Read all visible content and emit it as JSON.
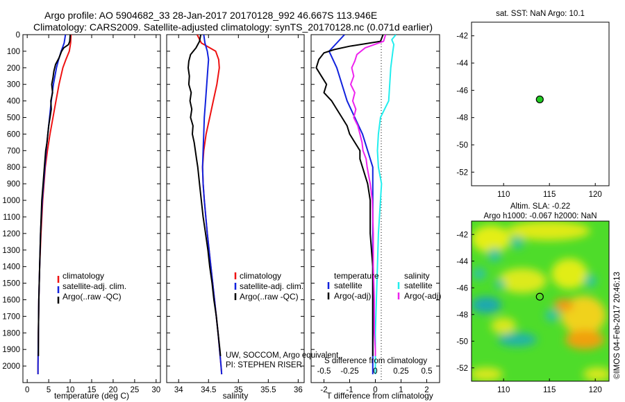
{
  "header": {
    "line1": "Argo profile: AO 5904682_33 28-Jan-2017 20170128_992 46.667S 113.946E",
    "line2": "Climatology: CARS2009. Satellite-adjusted climatology: synTS_20170128.nc (0.071d earlier)"
  },
  "annotations": {
    "float_info_1": "UW, SOCCOM, Argo equivalent",
    "float_info_2": "PI: STEPHEN RISER",
    "watermark": "©IMOS 04-Feb-2017 20:46:13"
  },
  "colors": {
    "climatology": "#ee1111",
    "satellite": "#1122dd",
    "argo": "#000000",
    "salinity_diff_argo": "#ee22ee",
    "salinity_diff_sat": "#22eeee",
    "dot": "#22cc22"
  },
  "chart_data": [
    {
      "type": "line",
      "panel": "temperature",
      "xlabel": "temperature (deg C)",
      "xlim": [
        -1,
        31
      ],
      "ylim": [
        2100,
        0
      ],
      "xticks": [
        "0",
        "5",
        "10",
        "15",
        "20",
        "25",
        "30"
      ],
      "yticks": [
        "0",
        "100",
        "200",
        "300",
        "400",
        "500",
        "600",
        "700",
        "800",
        "900",
        "1000",
        "1100",
        "1200",
        "1300",
        "1400",
        "1500",
        "1600",
        "1700",
        "1800",
        "1900",
        "2000"
      ],
      "legend": [
        "climatology",
        "satellite-adj. clim.",
        "Argo(..raw -QC)"
      ],
      "series": [
        {
          "name": "climatology",
          "color": "#ee1111",
          "y": [
            0,
            50,
            100,
            150,
            200,
            300,
            400,
            500,
            600,
            700,
            800,
            1000,
            1200,
            1400,
            1600,
            1800,
            2000,
            2050
          ],
          "x": [
            10.2,
            10.1,
            9.8,
            9.0,
            8.3,
            7.4,
            6.7,
            6.0,
            5.3,
            4.7,
            4.2,
            3.6,
            3.2,
            2.9,
            2.7,
            2.6,
            2.5,
            2.5
          ]
        },
        {
          "name": "satellite-adj. clim.",
          "color": "#1122dd",
          "y": [
            0,
            50,
            80,
            100,
            150,
            200,
            300,
            400,
            500,
            600,
            700,
            800,
            1000,
            1200,
            1400,
            1600,
            1800,
            2000,
            2050
          ],
          "x": [
            8.9,
            8.6,
            8.2,
            7.9,
            7.3,
            6.8,
            6.1,
            5.6,
            5.2,
            4.8,
            4.4,
            4.1,
            3.5,
            3.1,
            2.9,
            2.7,
            2.6,
            2.5,
            2.5
          ]
        },
        {
          "name": "Argo(..raw -QC)",
          "color": "#000000",
          "y": [
            0,
            40,
            60,
            80,
            100,
            140,
            180,
            220,
            260,
            300,
            350,
            400,
            450,
            500,
            550,
            600,
            650,
            700,
            800,
            900,
            1000,
            1200,
            1400,
            1600,
            1800,
            1900,
            1940
          ],
          "x": [
            10.0,
            9.9,
            9.6,
            8.5,
            8.0,
            7.4,
            6.6,
            6.2,
            6.0,
            5.7,
            5.9,
            5.5,
            5.6,
            5.3,
            5.0,
            4.8,
            4.6,
            4.3,
            4.0,
            3.7,
            3.4,
            3.1,
            2.9,
            2.7,
            2.6,
            2.6,
            2.6
          ]
        }
      ]
    },
    {
      "type": "line",
      "panel": "salinity",
      "xlabel": "salinity",
      "xlim": [
        33.8,
        36.1
      ],
      "ylim": [
        2100,
        0
      ],
      "xticks": [
        "34",
        "34.5",
        "35",
        "35.5",
        "36"
      ],
      "legend": [
        "climatology",
        "satellite-adj. clim.",
        "Argo(..raw -QC)"
      ],
      "series": [
        {
          "name": "climatology",
          "color": "#ee1111",
          "y": [
            0,
            50,
            100,
            150,
            200,
            300,
            400,
            500,
            600,
            700,
            800,
            900,
            1000,
            1200,
            1400,
            1600,
            1800,
            2000,
            2050
          ],
          "x": [
            34.31,
            34.38,
            34.62,
            34.67,
            34.68,
            34.64,
            34.58,
            34.52,
            34.46,
            34.42,
            34.4,
            34.41,
            34.43,
            34.48,
            34.54,
            34.6,
            34.66,
            34.71,
            34.72
          ]
        },
        {
          "name": "satellite-adj. clim.",
          "color": "#1122dd",
          "y": [
            0,
            50,
            100,
            150,
            200,
            300,
            400,
            500,
            600,
            700,
            800,
            900,
            1000,
            1200,
            1400,
            1600,
            1800,
            2000,
            2050
          ],
          "x": [
            34.42,
            34.44,
            34.48,
            34.5,
            34.49,
            34.47,
            34.45,
            34.43,
            34.42,
            34.41,
            34.4,
            34.41,
            34.43,
            34.48,
            34.54,
            34.6,
            34.66,
            34.71,
            34.72
          ]
        },
        {
          "name": "Argo(..raw -QC)",
          "color": "#000000",
          "y": [
            0,
            40,
            80,
            120,
            160,
            200,
            250,
            300,
            350,
            400,
            450,
            500,
            550,
            600,
            650,
            700,
            750,
            800,
            900,
            1000,
            1100,
            1200,
            1300,
            1400,
            1500,
            1600,
            1700,
            1800,
            1900,
            1940
          ],
          "x": [
            34.37,
            34.35,
            34.29,
            34.2,
            34.17,
            34.16,
            34.18,
            34.17,
            34.21,
            34.19,
            34.22,
            34.2,
            34.24,
            34.23,
            34.26,
            34.28,
            34.3,
            34.32,
            34.35,
            34.38,
            34.41,
            34.45,
            34.49,
            34.52,
            34.56,
            34.59,
            34.63,
            34.66,
            34.69,
            34.7
          ]
        }
      ]
    },
    {
      "type": "line",
      "panel": "difference",
      "xlabel": "T difference from climatology",
      "top_label": "S difference from climatology",
      "xlim": [
        -2.5,
        2.5
      ],
      "ylim": [
        2100,
        0
      ],
      "xticks": [
        "-2",
        "-1",
        "0",
        "1",
        "2"
      ],
      "top_xticks": [
        "-0.5",
        "-0.25",
        "0",
        "0.25",
        "0.5"
      ],
      "legend_groups": [
        {
          "title": "temperature",
          "items": [
            "satellite",
            "Argo(-adj)"
          ]
        },
        {
          "title": "salinity",
          "items": [
            "satellite",
            "Argo(-adj)"
          ]
        }
      ],
      "series": [
        {
          "name": "temperature satellite",
          "color": "#1122dd",
          "y": [
            0,
            50,
            100,
            200,
            300,
            400,
            500,
            600,
            700,
            800,
            1000,
            1200,
            1400,
            1600,
            1800,
            2000,
            2050
          ],
          "x": [
            -1.2,
            -1.5,
            -1.8,
            -1.5,
            -1.3,
            -1.1,
            -0.8,
            -0.5,
            -0.3,
            -0.1,
            -0.1,
            -0.1,
            -0.1,
            -0.1,
            -0.1,
            -0.1,
            -0.1
          ]
        },
        {
          "name": "temperature Argo(-adj)",
          "color": "#000000",
          "y": [
            0,
            40,
            70,
            90,
            110,
            150,
            200,
            250,
            300,
            350,
            400,
            450,
            500,
            550,
            600,
            650,
            700,
            750,
            800,
            850,
            900,
            1000,
            1200,
            1400,
            1600,
            1800,
            1900,
            1940
          ],
          "x": [
            0.3,
            0.2,
            -1.0,
            -1.6,
            -2.0,
            -2.2,
            -2.3,
            -2.1,
            -1.9,
            -2.0,
            -1.7,
            -1.5,
            -1.3,
            -1.1,
            -1.0,
            -0.8,
            -0.6,
            -0.6,
            -0.5,
            -0.4,
            -0.3,
            -0.2,
            -0.2,
            -0.1,
            -0.1,
            -0.1,
            -0.1,
            -0.1
          ]
        },
        {
          "name": "salinity satellite",
          "color": "#22eeee",
          "y": [
            0,
            30,
            60,
            100,
            200,
            300,
            400,
            500,
            600,
            700,
            800,
            900,
            1000,
            1100,
            1200,
            1400,
            1600,
            1800,
            2000,
            2050
          ],
          "x": [
            0.2,
            0.16,
            0.18,
            0.17,
            0.15,
            0.14,
            0.13,
            0.05,
            0.03,
            0.02,
            0.03,
            0.06,
            0.05,
            0.04,
            0.03,
            0.02,
            0.01,
            0.0,
            0.0,
            0.0
          ]
        },
        {
          "name": "salinity Argo(-adj)",
          "color": "#ee22ee",
          "y": [
            0,
            40,
            80,
            120,
            160,
            200,
            250,
            300,
            350,
            400,
            450,
            500,
            550,
            600,
            650,
            700,
            750,
            800,
            900,
            1000,
            1200,
            1400,
            1600,
            1800,
            1900,
            1940
          ],
          "x": [
            0.1,
            0.08,
            -0.1,
            -0.18,
            -0.2,
            -0.23,
            -0.21,
            -0.24,
            -0.2,
            -0.22,
            -0.19,
            -0.21,
            -0.17,
            -0.15,
            -0.13,
            -0.12,
            -0.09,
            -0.08,
            -0.05,
            -0.03,
            -0.02,
            -0.02,
            -0.01,
            -0.01,
            0.0,
            0.0
          ]
        }
      ]
    },
    {
      "type": "scatter",
      "panel": "location",
      "title": "sat. SST: NaN Argo: 10.1",
      "xlim": [
        106.5,
        121.5
      ],
      "ylim": [
        -53,
        -41
      ],
      "xticks": [
        "110",
        "115",
        "120"
      ],
      "yticks": [
        "-42",
        "-44",
        "-46",
        "-48",
        "-50",
        "-52"
      ],
      "points": [
        {
          "x": 113.946,
          "y": -46.667
        }
      ]
    },
    {
      "type": "heatmap",
      "panel": "altimetry",
      "title_1": "Altim. SLA: -0.22",
      "title_2": "Argo h1000: -0.067 h2000: NaN",
      "xlim": [
        106.5,
        121.5
      ],
      "ylim": [
        -53,
        -41
      ],
      "xticks": [
        "110",
        "115",
        "120"
      ],
      "yticks": [
        "-42",
        "-44",
        "-46",
        "-48",
        "-50",
        "-52"
      ],
      "points": [
        {
          "x": 113.946,
          "y": -46.667
        }
      ]
    }
  ]
}
